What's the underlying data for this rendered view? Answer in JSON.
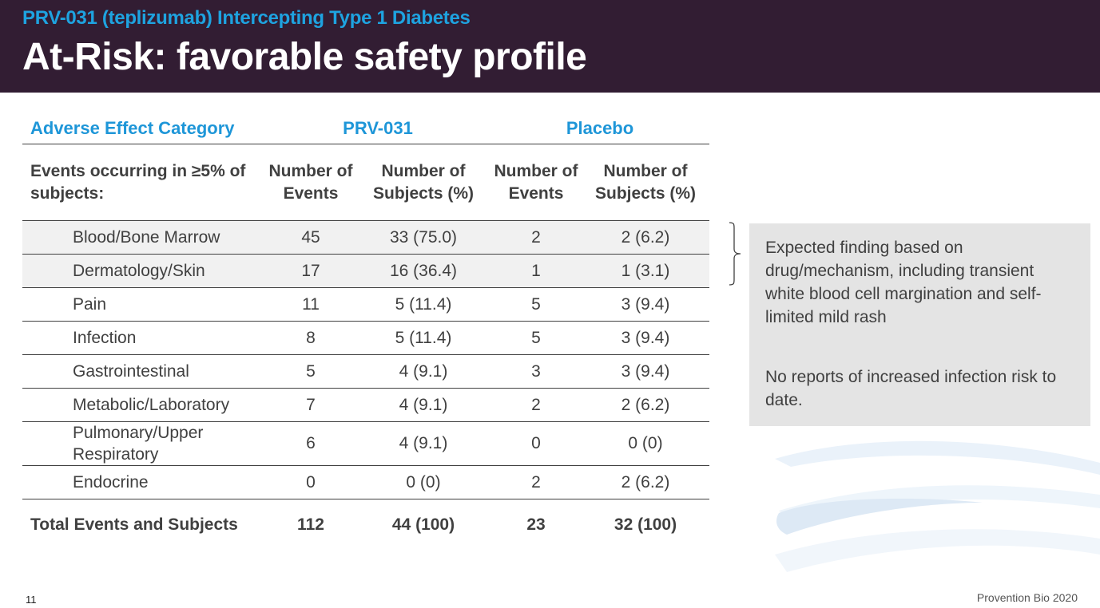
{
  "header": {
    "subtitle": "PRV-031 (teplizumab) Intercepting Type 1 Diabetes",
    "title": "At-Risk: favorable safety profile"
  },
  "table": {
    "group_headers": {
      "category": "Adverse Effect Category",
      "drug": "PRV-031",
      "placebo": "Placebo"
    },
    "sub_headers": {
      "events_label": "Events occurring in ≥5% of subjects:",
      "num_events": "Number of Events",
      "num_subjects": "Number of Subjects (%)"
    },
    "rows": [
      {
        "category": "Blood/Bone Marrow",
        "drug_events": "45",
        "drug_subjects": "33 (75.0)",
        "placebo_events": "2",
        "placebo_subjects": "2 (6.2)"
      },
      {
        "category": "Dermatology/Skin",
        "drug_events": "17",
        "drug_subjects": "16 (36.4)",
        "placebo_events": "1",
        "placebo_subjects": "1 (3.1)"
      },
      {
        "category": "Pain",
        "drug_events": "11",
        "drug_subjects": "5 (11.4)",
        "placebo_events": "5",
        "placebo_subjects": "3 (9.4)"
      },
      {
        "category": "Infection",
        "drug_events": "8",
        "drug_subjects": "5 (11.4)",
        "placebo_events": "5",
        "placebo_subjects": "3 (9.4)"
      },
      {
        "category": "Gastrointestinal",
        "drug_events": "5",
        "drug_subjects": "4 (9.1)",
        "placebo_events": "3",
        "placebo_subjects": "3 (9.4)"
      },
      {
        "category": "Metabolic/Laboratory",
        "drug_events": "7",
        "drug_subjects": "4 (9.1)",
        "placebo_events": "2",
        "placebo_subjects": "2 (6.2)"
      },
      {
        "category": "Pulmonary/Upper Respiratory",
        "drug_events": "6",
        "drug_subjects": "4 (9.1)",
        "placebo_events": "0",
        "placebo_subjects": "0 (0)"
      },
      {
        "category": "Endocrine",
        "drug_events": "0",
        "drug_subjects": "0 (0)",
        "placebo_events": "2",
        "placebo_subjects": "2 (6.2)"
      }
    ],
    "total": {
      "label": "Total Events and Subjects",
      "drug_events": "112",
      "drug_subjects": "44 (100)",
      "placebo_events": "23",
      "placebo_subjects": "32 (100)"
    }
  },
  "notes": {
    "note1": "Expected finding based on drug/mechanism, including transient white blood cell margination and self-limited mild rash",
    "note2": "No reports of increased infection risk to date."
  },
  "footer": {
    "page_number": "11",
    "company": "Provention Bio 2020"
  },
  "colors": {
    "header_bg": "#321d33",
    "accent_blue": "#1ea3e0",
    "note_bg": "#e4e4e4"
  }
}
